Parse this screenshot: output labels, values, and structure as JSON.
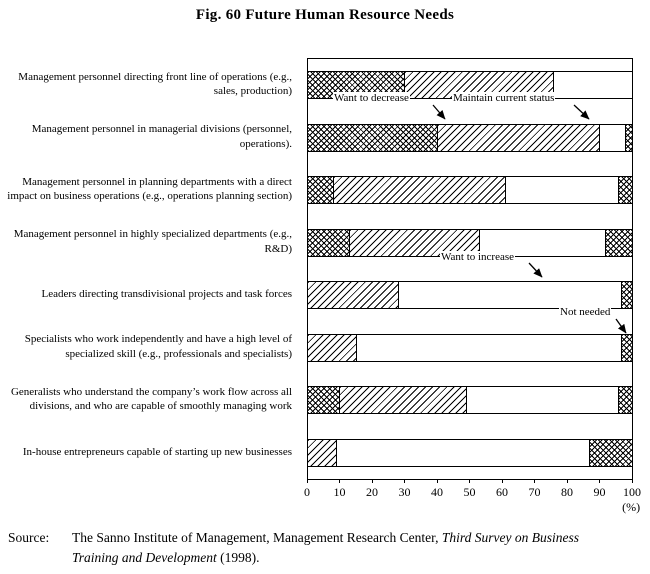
{
  "title": "Fig. 60  Future Human Resource Needs",
  "chart_data": {
    "type": "bar",
    "stacked": true,
    "orientation": "horizontal",
    "title": "Fig. 60  Future Human Resource Needs",
    "xlabel": "(%)",
    "xlim": [
      0,
      100
    ],
    "xticks": [
      0,
      10,
      20,
      30,
      40,
      50,
      60,
      70,
      80,
      90,
      100
    ],
    "grid": false,
    "legend_position": "floating annotations with arrows",
    "categories": [
      "Management personnel directing front line of operations (e.g., sales, production)",
      "Management personnel in managerial divisions (personnel, operations).",
      "Management personnel in planning departments with a direct impact on business operations (e.g., operations planning section)",
      "Management personnel in highly specialized departments (e.g., R&D)",
      "Leaders directing transdivisional projects and task forces",
      "Specialists who work independently and have a high level of specialized skill (e.g., professionals and specialists)",
      "Generalists who understand the company’s work flow across all divisions, and who are capable of smoothly managing work",
      "In-house entrepreneurs capable of starting up new businesses"
    ],
    "series": [
      {
        "name": "Want to decrease",
        "pattern": "cross",
        "values": [
          30,
          40,
          8,
          13,
          0,
          0,
          10,
          0
        ]
      },
      {
        "name": "Maintain current status",
        "pattern": "diag",
        "values": [
          46,
          50,
          53,
          40,
          28,
          15,
          39,
          9
        ]
      },
      {
        "name": "Want to increase",
        "pattern": "plain",
        "values": [
          24,
          8,
          35,
          39,
          69,
          82,
          47,
          78
        ]
      },
      {
        "name": "Not needed",
        "pattern": "cross",
        "values": [
          0,
          2,
          4,
          8,
          3,
          3,
          4,
          13
        ]
      }
    ],
    "annotations": [
      "Want to decrease",
      "Maintain current status",
      "Want to increase",
      "Not needed"
    ]
  },
  "source": {
    "label": "Source:",
    "text_normal": "The Sanno Institute of Management, Management Research Center, ",
    "text_italic": "Third Survey on Business Training and Development",
    "text_suffix": " (1998)."
  }
}
